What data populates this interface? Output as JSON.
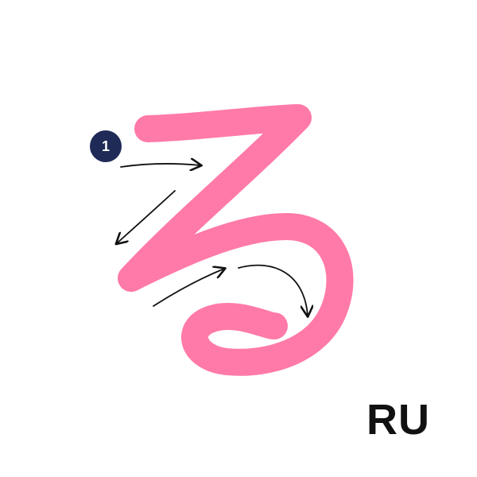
{
  "character": {
    "romaji": "RU",
    "stroke_color": "#ff7aa8",
    "stroke_count_label": "1",
    "badge_color": "#1f2a57",
    "arrow_color": "#111111",
    "direction_arrows": 4
  }
}
